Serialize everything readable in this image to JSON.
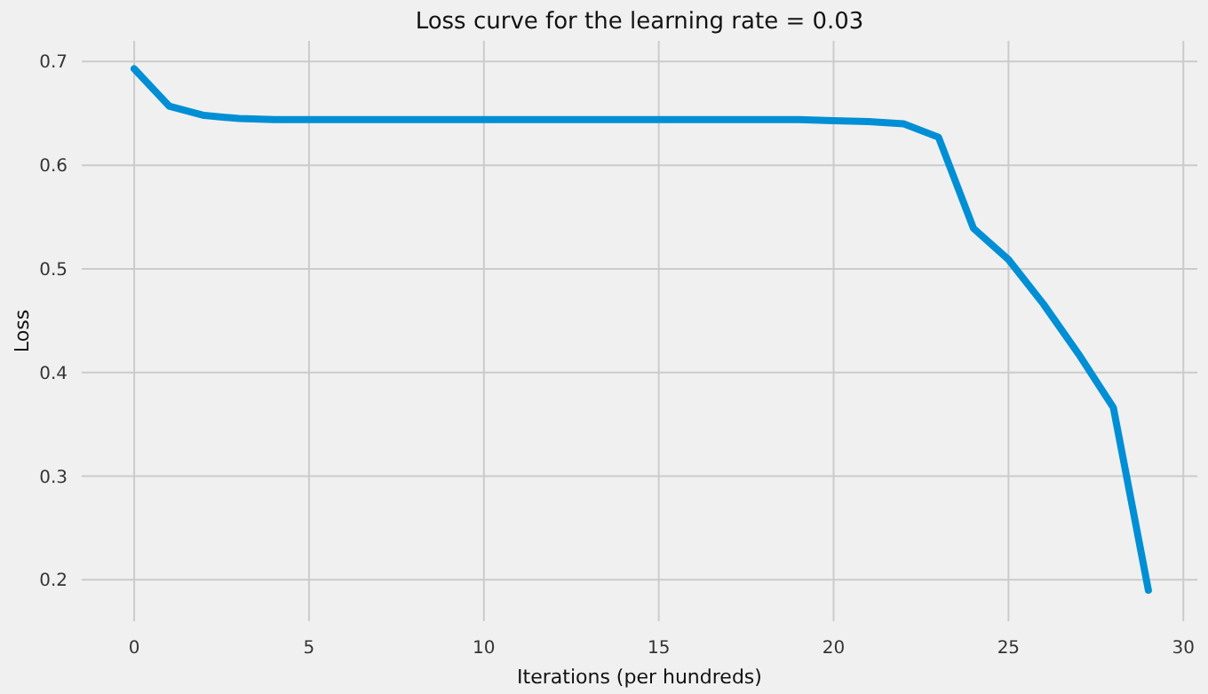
{
  "chart_data": {
    "type": "line",
    "title": "Loss curve for the learning rate = 0.03",
    "xlabel": "Iterations (per hundreds)",
    "ylabel": "Loss",
    "x": [
      0,
      1,
      2,
      3,
      4,
      5,
      6,
      7,
      8,
      9,
      10,
      11,
      12,
      13,
      14,
      15,
      16,
      17,
      18,
      19,
      20,
      21,
      22,
      23,
      24,
      25,
      26,
      27,
      28,
      29
    ],
    "series": [
      {
        "color": "#008fd5",
        "values": [
          0.693,
          0.657,
          0.648,
          0.645,
          0.644,
          0.644,
          0.644,
          0.644,
          0.644,
          0.644,
          0.644,
          0.644,
          0.644,
          0.644,
          0.644,
          0.644,
          0.644,
          0.644,
          0.644,
          0.644,
          0.643,
          0.642,
          0.64,
          0.627,
          0.539,
          0.509,
          0.466,
          0.418,
          0.366,
          0.19
        ]
      }
    ],
    "xlim": [
      -1.5,
      30.4
    ],
    "ylim": [
      0.16,
      0.72
    ],
    "xticks": [
      0,
      5,
      10,
      15,
      20,
      25,
      30
    ],
    "yticks": [
      0.2,
      0.3,
      0.4,
      0.5,
      0.6,
      0.7
    ],
    "grid": true
  }
}
